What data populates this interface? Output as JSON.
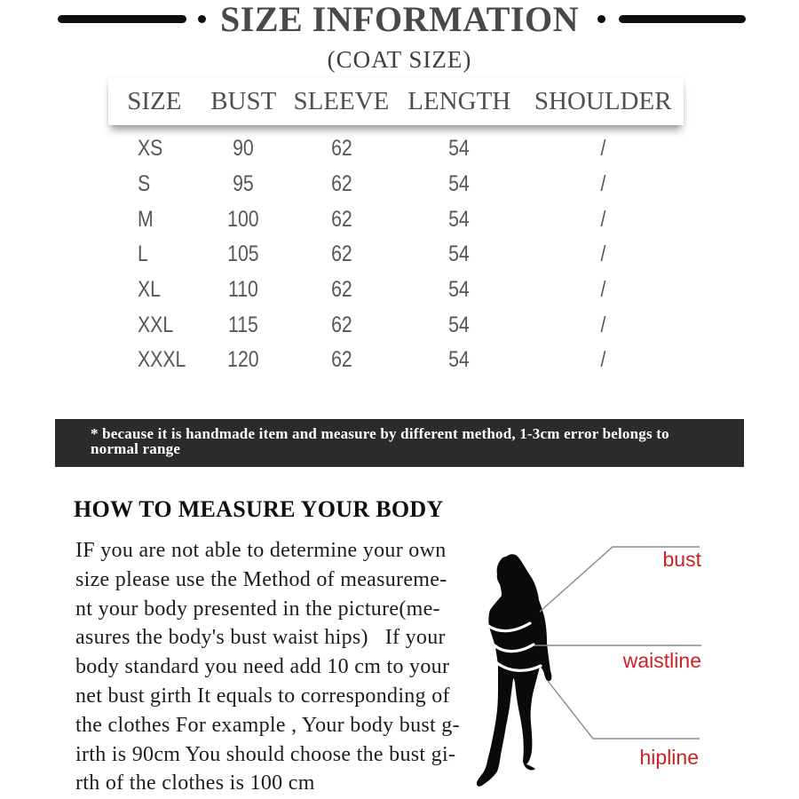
{
  "header": {
    "title": "SIZE INFORMATION",
    "subtitle": "(COAT SIZE)",
    "bar_color": "#0e0e0e",
    "title_color": "#494949"
  },
  "size_table": {
    "columns": [
      "SIZE",
      "BUST",
      "SLEEVE",
      "LENGTH",
      "SHOULDER"
    ],
    "rows": [
      [
        "XS",
        "90",
        "62",
        "54",
        "/"
      ],
      [
        "S",
        "95",
        "62",
        "54",
        "/"
      ],
      [
        "M",
        "100",
        "62",
        "54",
        "/"
      ],
      [
        "L",
        "105",
        "62",
        "54",
        "/"
      ],
      [
        "XL",
        "110",
        "62",
        "54",
        "/"
      ],
      [
        "XXL",
        "115",
        "62",
        "54",
        "/"
      ],
      [
        "XXXL",
        "120",
        "62",
        "54",
        "/"
      ]
    ],
    "header_text_color": "#4f4f4f",
    "data_text_color": "#575757"
  },
  "notice": {
    "text": "* because it is handmade item and measure by different method, 1-3cm error belongs to normal range",
    "bg_color": "#2b2b2b",
    "text_color": "#ffffff"
  },
  "measure_section": {
    "heading": "HOW TO MEASURE YOUR BODY",
    "body_lines": [
      "IF you are not able to determine your own",
      "size please use the Method of measureme-",
      "nt your body presented in the picture(me-",
      "asures the body's bust waist hips)   If your",
      "body standard you need add 10 cm to your",
      "net bust girth It equals to corresponding of",
      "the clothes For example , Your body bust g-",
      "irth is 90cm You should choose the bust gi-",
      "rth of the clothes is 100 cm"
    ]
  },
  "figure": {
    "labels": {
      "bust": "bust",
      "waist": "waistline",
      "hip": "hipline"
    },
    "label_color": "#cc2127",
    "callout_color": "#8a8a8a",
    "silhouette_color": "#0a0a0a"
  }
}
